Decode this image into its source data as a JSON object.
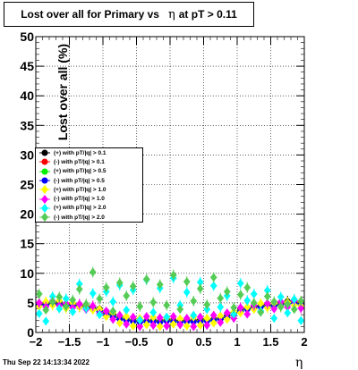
{
  "header": {
    "title_main": "Lost over all for Primary vs",
    "title_eta": "η",
    "title_tail": "at pT > 0.11"
  },
  "footer": {
    "timestamp": "Thu Sep 22 14:13:34 2022"
  },
  "chart_data": {
    "type": "scatter",
    "title": "Lost over all for Primary vs η at pT > 0.11",
    "xlabel": "η",
    "ylabel": "Lost over all (%)",
    "xlim": [
      -2,
      2
    ],
    "ylim": [
      0,
      50
    ],
    "grid": true,
    "legend_position": "middle-left",
    "x_ticks": [
      "−2",
      "−1.5",
      "−1",
      "−0.5",
      "0",
      "0.5",
      "1",
      "1.5",
      "2"
    ],
    "y_ticks": [
      "0",
      "5",
      "10",
      "15",
      "20",
      "25",
      "30",
      "35",
      "40",
      "45",
      "50"
    ],
    "x": [
      -1.95,
      -1.85,
      -1.75,
      -1.65,
      -1.55,
      -1.45,
      -1.35,
      -1.25,
      -1.15,
      -1.05,
      -0.95,
      -0.85,
      -0.75,
      -0.65,
      -0.55,
      -0.45,
      -0.35,
      -0.25,
      -0.15,
      -0.05,
      0.05,
      0.15,
      0.25,
      0.35,
      0.45,
      0.55,
      0.65,
      0.75,
      0.85,
      0.95,
      1.05,
      1.15,
      1.25,
      1.35,
      1.45,
      1.55,
      1.65,
      1.75,
      1.85,
      1.95
    ],
    "series": [
      {
        "name": "(+) with pT/|q| > 0.1",
        "color": "#000000",
        "marker": "circle",
        "values": [
          4.8,
          5.0,
          4.9,
          5.1,
          4.7,
          4.9,
          4.6,
          4.4,
          4.3,
          4.0,
          3.6,
          3.1,
          2.6,
          2.3,
          2.1,
          2.0,
          2.0,
          2.1,
          2.0,
          2.2,
          2.1,
          2.0,
          2.1,
          2.0,
          2.2,
          2.1,
          2.3,
          2.5,
          2.9,
          3.4,
          3.9,
          4.2,
          4.5,
          4.6,
          4.8,
          4.7,
          5.0,
          5.3,
          5.5,
          4.9
        ]
      },
      {
        "name": "(-) with pT/|q| > 0.1",
        "color": "#ff0000",
        "marker": "circle",
        "values": [
          4.9,
          4.8,
          5.0,
          4.9,
          4.8,
          4.7,
          4.5,
          4.3,
          4.1,
          3.8,
          3.4,
          2.9,
          2.5,
          2.2,
          2.0,
          1.9,
          2.0,
          2.0,
          1.9,
          2.1,
          2.0,
          1.9,
          2.0,
          2.1,
          2.0,
          2.0,
          2.2,
          2.4,
          2.7,
          3.2,
          3.7,
          4.1,
          4.3,
          4.5,
          4.6,
          4.7,
          4.8,
          5.0,
          5.2,
          5.1
        ]
      },
      {
        "name": "(+) with pT/|q| > 0.5",
        "color": "#00ee00",
        "marker": "circle",
        "values": [
          4.6,
          4.7,
          4.9,
          4.8,
          4.6,
          4.6,
          4.4,
          4.2,
          4.0,
          3.7,
          3.2,
          2.8,
          2.4,
          2.1,
          1.9,
          1.8,
          1.9,
          1.9,
          1.8,
          2.0,
          1.9,
          1.8,
          1.9,
          1.9,
          1.9,
          2.0,
          2.1,
          2.3,
          2.6,
          3.1,
          3.6,
          4.0,
          4.2,
          4.4,
          4.5,
          4.6,
          4.7,
          4.9,
          5.0,
          4.8
        ]
      },
      {
        "name": "(-) with pT/|q| > 0.5",
        "color": "#0000ff",
        "marker": "circle",
        "values": [
          4.7,
          4.6,
          4.8,
          4.7,
          4.5,
          4.5,
          4.3,
          4.1,
          3.9,
          3.5,
          3.0,
          2.6,
          2.2,
          2.0,
          1.8,
          1.7,
          1.8,
          1.8,
          1.7,
          1.9,
          1.8,
          1.7,
          1.8,
          1.8,
          1.8,
          1.9,
          2.0,
          2.2,
          2.5,
          3.0,
          3.5,
          3.9,
          4.1,
          4.3,
          4.4,
          4.5,
          4.6,
          4.8,
          4.9,
          4.7
        ]
      },
      {
        "name": "(+) with pT/|q| > 1.0",
        "color": "#ffff00",
        "marker": "diamond",
        "values": [
          4.4,
          5.2,
          4.6,
          5.4,
          4.1,
          5.0,
          4.3,
          4.7,
          3.8,
          3.9,
          2.7,
          3.4,
          1.6,
          2.7,
          1.1,
          2.4,
          1.3,
          2.6,
          1.0,
          2.5,
          1.4,
          2.3,
          1.1,
          2.6,
          1.2,
          2.4,
          1.6,
          2.8,
          2.2,
          3.5,
          3.3,
          4.3,
          3.9,
          4.9,
          4.2,
          5.0,
          4.4,
          5.1,
          4.6,
          4.5
        ]
      },
      {
        "name": "(-) with pT/|q| > 1.0",
        "color": "#ff00ff",
        "marker": "diamond",
        "values": [
          5.0,
          4.3,
          5.3,
          4.5,
          4.9,
          4.2,
          4.8,
          3.9,
          4.5,
          3.2,
          3.6,
          2.2,
          2.9,
          1.4,
          2.6,
          1.0,
          2.7,
          1.2,
          2.5,
          1.1,
          2.7,
          1.3,
          2.4,
          1.0,
          2.6,
          1.2,
          2.9,
          1.7,
          3.3,
          2.4,
          4.2,
          3.1,
          4.6,
          3.6,
          4.9,
          4.0,
          5.2,
          4.3,
          5.4,
          4.1
        ]
      },
      {
        "name": "(+) with pT/|q| > 2.0",
        "color": "#00ffff",
        "marker": "diamond",
        "values": [
          3.2,
          1.9,
          6.1,
          4.0,
          5.7,
          3.5,
          8.2,
          4.1,
          6.6,
          3.0,
          6.9,
          5.2,
          8.0,
          3.8,
          7.2,
          2.1,
          8.9,
          3.4,
          7.5,
          2.6,
          9.2,
          4.6,
          6.8,
          2.9,
          8.5,
          3.9,
          7.9,
          4.3,
          6.2,
          3.1,
          8.3,
          5.4,
          6.5,
          3.6,
          7.1,
          2.4,
          6.0,
          3.3,
          5.6,
          2.0
        ]
      },
      {
        "name": "(-) with pT/|q| > 2.0",
        "color": "#55cc55",
        "marker": "diamond",
        "values": [
          6.5,
          3.8,
          5.2,
          6.0,
          4.4,
          5.5,
          7.3,
          4.8,
          10.2,
          5.7,
          7.6,
          3.6,
          8.4,
          6.2,
          7.8,
          4.4,
          9.0,
          5.1,
          8.1,
          4.6,
          9.7,
          3.9,
          8.6,
          5.3,
          7.4,
          4.7,
          9.3,
          5.8,
          6.9,
          4.2,
          6.4,
          7.6,
          5.0,
          3.4,
          6.1,
          5.2,
          4.3,
          4.8,
          3.9,
          5.3
        ]
      }
    ]
  }
}
